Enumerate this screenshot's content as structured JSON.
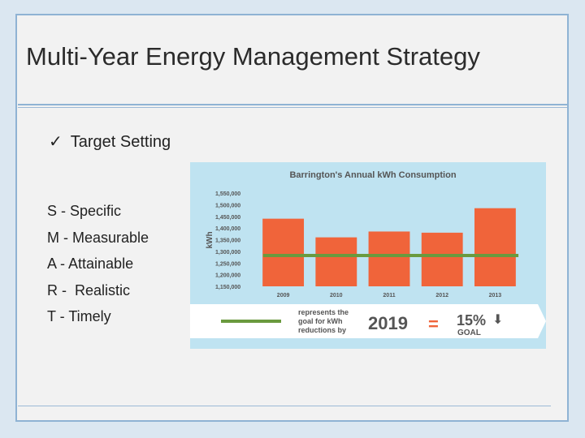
{
  "slide": {
    "title": "Multi-Year Energy Management Strategy",
    "bullet": {
      "check": "✓",
      "label": "Target Setting"
    },
    "smart": [
      "S - Specific",
      "M - Measurable",
      "A - Attainable",
      "R -  Realistic",
      "T - Timely"
    ]
  },
  "colors": {
    "bar": "#f0643a",
    "goal_line": "#6a9a3e",
    "chart_bg": "#bfe3f1",
    "text_dark": "#555555"
  },
  "chart_data": {
    "type": "bar",
    "title": "Barrington's Annual kWh Consumption",
    "ylabel": "kWh",
    "xlabel": "",
    "categories": [
      "2009",
      "2010",
      "2011",
      "2012",
      "2013"
    ],
    "values": [
      1440000,
      1360000,
      1385000,
      1380000,
      1485000
    ],
    "goal": 1282000,
    "ylim": [
      1150000,
      1550000
    ],
    "yticks": [
      "1,550,000",
      "1,500,000",
      "1,450,000",
      "1,400,000",
      "1,350,000",
      "1,300,000",
      "1,250,000",
      "1,200,000",
      "1,150,000"
    ],
    "legend": {
      "line_text": [
        "represents the",
        "goal for kWh",
        "reductions by"
      ],
      "year": "2019",
      "equals": "=",
      "percent": "15%",
      "arrow": "⬇",
      "goal_word": "GOAL"
    }
  }
}
